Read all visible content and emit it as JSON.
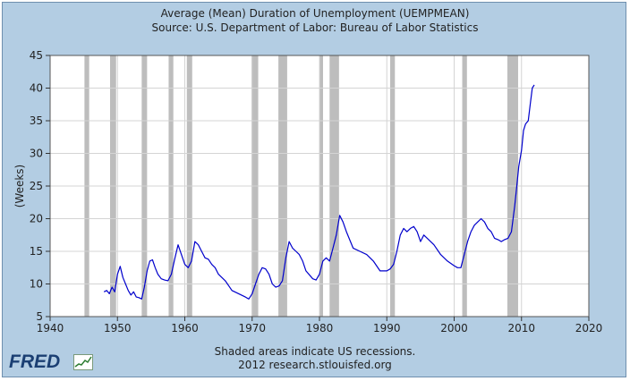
{
  "chart_data": {
    "type": "line",
    "title": "Average (Mean) Duration of Unemployment (UEMPMEAN)",
    "subtitle": "Source: U.S. Department of Labor: Bureau of Labor Statistics",
    "xlabel": "",
    "ylabel": "(Weeks)",
    "xlim": [
      1940,
      2020
    ],
    "ylim": [
      5,
      45
    ],
    "x_ticks": [
      1940,
      1950,
      1960,
      1970,
      1980,
      1990,
      2000,
      2010,
      2020
    ],
    "y_ticks": [
      5,
      10,
      15,
      20,
      25,
      30,
      35,
      40,
      45
    ],
    "grid": true,
    "line_color": "#0000cc",
    "recession_color": "#bdbdbd",
    "recessions": [
      [
        1945.1,
        1945.8
      ],
      [
        1948.9,
        1949.8
      ],
      [
        1953.6,
        1954.4
      ],
      [
        1957.6,
        1958.3
      ],
      [
        1960.3,
        1961.1
      ],
      [
        1969.9,
        1970.9
      ],
      [
        1973.9,
        1975.2
      ],
      [
        1980.0,
        1980.5
      ],
      [
        1981.5,
        1982.9
      ],
      [
        1990.5,
        1991.2
      ],
      [
        2001.2,
        2001.9
      ],
      [
        2007.9,
        2009.5
      ]
    ],
    "series": [
      {
        "name": "UEMPMEAN",
        "x": [
          1948.0,
          1948.4,
          1948.8,
          1949.2,
          1949.6,
          1950.0,
          1950.4,
          1950.8,
          1951.2,
          1951.6,
          1952.0,
          1952.4,
          1952.8,
          1953.2,
          1953.6,
          1954.0,
          1954.4,
          1954.8,
          1955.2,
          1955.6,
          1956.0,
          1956.5,
          1957.0,
          1957.5,
          1958.0,
          1958.5,
          1959.0,
          1959.5,
          1960.0,
          1960.5,
          1961.0,
          1961.5,
          1962.0,
          1962.5,
          1963.0,
          1963.5,
          1964.0,
          1964.5,
          1965.0,
          1966.0,
          1967.0,
          1968.0,
          1969.0,
          1969.5,
          1970.0,
          1970.5,
          1971.0,
          1971.5,
          1972.0,
          1972.5,
          1973.0,
          1973.5,
          1974.0,
          1974.5,
          1975.0,
          1975.5,
          1976.0,
          1976.5,
          1977.0,
          1977.5,
          1978.0,
          1979.0,
          1979.5,
          1980.0,
          1980.5,
          1981.0,
          1981.5,
          1982.0,
          1982.5,
          1983.0,
          1983.5,
          1984.0,
          1985.0,
          1986.0,
          1987.0,
          1988.0,
          1989.0,
          1990.0,
          1990.5,
          1991.0,
          1991.5,
          1992.0,
          1992.5,
          1993.0,
          1993.5,
          1994.0,
          1994.5,
          1995.0,
          1995.5,
          1996.0,
          1997.0,
          1998.0,
          1999.0,
          2000.0,
          2000.5,
          2001.0,
          2001.5,
          2002.0,
          2002.5,
          2003.0,
          2003.5,
          2004.0,
          2004.5,
          2005.0,
          2005.5,
          2006.0,
          2006.5,
          2007.0,
          2007.5,
          2008.0,
          2008.5,
          2009.0,
          2009.3,
          2009.6,
          2010.0,
          2010.3,
          2010.6,
          2011.0,
          2011.3,
          2011.6,
          2011.9
        ],
        "values": [
          8.8,
          9.0,
          8.5,
          9.5,
          8.8,
          11.5,
          12.7,
          11.0,
          10.0,
          9.0,
          8.3,
          8.8,
          8.0,
          7.9,
          7.7,
          9.5,
          12.0,
          13.5,
          13.7,
          12.5,
          11.5,
          10.8,
          10.6,
          10.5,
          11.5,
          13.8,
          16.0,
          14.5,
          13.0,
          12.5,
          13.5,
          16.5,
          16.0,
          15.0,
          14.0,
          13.8,
          13.0,
          12.5,
          11.5,
          10.5,
          9.0,
          8.5,
          8.0,
          7.7,
          8.5,
          10.0,
          11.5,
          12.5,
          12.3,
          11.5,
          10.0,
          9.5,
          9.7,
          10.5,
          14.0,
          16.5,
          15.5,
          15.0,
          14.5,
          13.5,
          12.0,
          10.8,
          10.6,
          11.5,
          13.5,
          14.0,
          13.5,
          15.5,
          17.5,
          20.5,
          19.5,
          18.0,
          15.5,
          15.0,
          14.5,
          13.5,
          12.0,
          12.0,
          12.3,
          13.0,
          15.0,
          17.5,
          18.5,
          18.0,
          18.5,
          18.8,
          18.0,
          16.5,
          17.5,
          17.0,
          16.0,
          14.5,
          13.5,
          12.8,
          12.5,
          12.5,
          14.5,
          16.5,
          18.0,
          19.0,
          19.5,
          20.0,
          19.5,
          18.5,
          18.0,
          17.0,
          16.8,
          16.5,
          16.8,
          17.0,
          18.0,
          22.0,
          25.0,
          28.0,
          30.5,
          33.5,
          34.5,
          35.0,
          37.5,
          40.0,
          40.5
        ]
      }
    ]
  },
  "footer": {
    "note": "Shaded areas indicate US recessions.",
    "source": "2012 research.stlouisfed.org"
  },
  "logo": {
    "text": "FRED"
  }
}
